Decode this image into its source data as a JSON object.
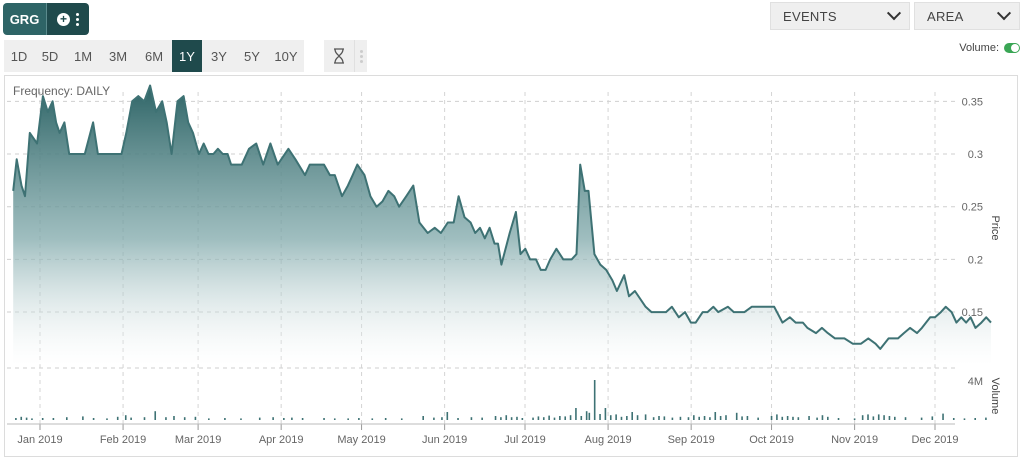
{
  "ticker": {
    "symbol": "GRG"
  },
  "dropdowns": {
    "events_label": "EVENTS",
    "chart_type_label": "AREA"
  },
  "ranges": [
    "1D",
    "5D",
    "1M",
    "3M",
    "6M",
    "1Y",
    "3Y",
    "5Y",
    "10Y"
  ],
  "active_range": "1Y",
  "volume_toggle": {
    "label": "Volume:",
    "on": true,
    "color": "#3aa655"
  },
  "frequency_text": "Frequency: DAILY",
  "colors": {
    "accent": "#1f4a4c",
    "line": "#3e7274",
    "fill_top": "#2e6466",
    "volume_bar": "#3e7274"
  },
  "chart_data": {
    "type": "area",
    "title": "",
    "ylabel": "Price",
    "y2label": "Volume",
    "ylim": [
      0.095,
      0.375
    ],
    "yticks": [
      0.15,
      0.2,
      0.25,
      0.3,
      0.35
    ],
    "ytick_labels": [
      "0.15",
      "0.2",
      "0.25",
      "0.3",
      "0.35"
    ],
    "volume_ticks": [
      4000000
    ],
    "volume_tick_labels": [
      "4M"
    ],
    "x_labels": [
      {
        "t": 2.0,
        "label": "Jan 2019"
      },
      {
        "t": 33.0,
        "label": "Feb 2019"
      },
      {
        "t": 61.0,
        "label": "Mar 2019"
      },
      {
        "t": 92.0,
        "label": "Apr 2019"
      },
      {
        "t": 122.0,
        "label": "May 2019"
      },
      {
        "t": 153.0,
        "label": "Jun 2019"
      },
      {
        "t": 183.0,
        "label": "Jul 2019"
      },
      {
        "t": 214.0,
        "label": "Aug 2019"
      },
      {
        "t": 245.0,
        "label": "Sep 2019"
      },
      {
        "t": 275.0,
        "label": "Oct 2019"
      },
      {
        "t": 306.0,
        "label": "Nov 2019"
      },
      {
        "t": 336.0,
        "label": "Dec 2019"
      }
    ],
    "grid": true,
    "series": [
      {
        "values": [
          [
            -8,
            0.265
          ],
          [
            -6.7,
            0.295
          ],
          [
            -4.9,
            0.27
          ],
          [
            -3.6,
            0.26
          ],
          [
            -1.8,
            0.32
          ],
          [
            0.9,
            0.31
          ],
          [
            3.1,
            0.355
          ],
          [
            4.9,
            0.34
          ],
          [
            6.7,
            0.35
          ],
          [
            8.0,
            0.33
          ],
          [
            9.3,
            0.32
          ],
          [
            11.1,
            0.33
          ],
          [
            12.9,
            0.3
          ],
          [
            15.1,
            0.3
          ],
          [
            17.3,
            0.3
          ],
          [
            18.7,
            0.3
          ],
          [
            21.8,
            0.33
          ],
          [
            23.6,
            0.3
          ],
          [
            26.2,
            0.3
          ],
          [
            28.0,
            0.3
          ],
          [
            30.7,
            0.3
          ],
          [
            32.4,
            0.3
          ],
          [
            34.2,
            0.32
          ],
          [
            36.4,
            0.35
          ],
          [
            38.7,
            0.355
          ],
          [
            40.9,
            0.35
          ],
          [
            43.1,
            0.365
          ],
          [
            45.3,
            0.34
          ],
          [
            47.6,
            0.35
          ],
          [
            49.3,
            0.33
          ],
          [
            51.1,
            0.3
          ],
          [
            53.3,
            0.35
          ],
          [
            55.6,
            0.355
          ],
          [
            57.3,
            0.33
          ],
          [
            59.1,
            0.32
          ],
          [
            61.3,
            0.3
          ],
          [
            63.1,
            0.31
          ],
          [
            64.9,
            0.3
          ],
          [
            66.7,
            0.3
          ],
          [
            68.4,
            0.305
          ],
          [
            70.2,
            0.3
          ],
          [
            72.0,
            0.3
          ],
          [
            73.3,
            0.29
          ],
          [
            77.3,
            0.29
          ],
          [
            80.0,
            0.305
          ],
          [
            82.7,
            0.31
          ],
          [
            85.3,
            0.29
          ],
          [
            88.0,
            0.31
          ],
          [
            90.7,
            0.29
          ],
          [
            94.7,
            0.305
          ],
          [
            97.3,
            0.295
          ],
          [
            100.9,
            0.28
          ],
          [
            102.7,
            0.29
          ],
          [
            108.0,
            0.29
          ],
          [
            110.2,
            0.28
          ],
          [
            112.0,
            0.28
          ],
          [
            114.7,
            0.26
          ],
          [
            116.9,
            0.27
          ],
          [
            118.7,
            0.28
          ],
          [
            120.4,
            0.29
          ],
          [
            123.1,
            0.28
          ],
          [
            125.3,
            0.26
          ],
          [
            127.6,
            0.25
          ],
          [
            129.8,
            0.255
          ],
          [
            132.0,
            0.265
          ],
          [
            134.2,
            0.26
          ],
          [
            136.0,
            0.25
          ],
          [
            138.7,
            0.26
          ],
          [
            141.3,
            0.27
          ],
          [
            143.6,
            0.235
          ],
          [
            146.7,
            0.225
          ],
          [
            149.3,
            0.23
          ],
          [
            151.6,
            0.225
          ],
          [
            154.2,
            0.235
          ],
          [
            156.4,
            0.235
          ],
          [
            158.2,
            0.26
          ],
          [
            160.4,
            0.24
          ],
          [
            162.7,
            0.235
          ],
          [
            164.4,
            0.225
          ],
          [
            166.2,
            0.23
          ],
          [
            168.0,
            0.22
          ],
          [
            169.8,
            0.23
          ],
          [
            171.6,
            0.215
          ],
          [
            172.9,
            0.215
          ],
          [
            174.2,
            0.195
          ],
          [
            177.3,
            0.225
          ],
          [
            179.6,
            0.245
          ],
          [
            181.3,
            0.205
          ],
          [
            183.1,
            0.21
          ],
          [
            184.9,
            0.2
          ],
          [
            187.1,
            0.2
          ],
          [
            188.9,
            0.19
          ],
          [
            190.7,
            0.19
          ],
          [
            192.4,
            0.2
          ],
          [
            194.7,
            0.21
          ],
          [
            197.3,
            0.2
          ],
          [
            200.4,
            0.2
          ],
          [
            202.2,
            0.205
          ],
          [
            203.6,
            0.29
          ],
          [
            205.3,
            0.265
          ],
          [
            206.7,
            0.265
          ],
          [
            208.9,
            0.205
          ],
          [
            211.1,
            0.195
          ],
          [
            213.3,
            0.19
          ],
          [
            215.6,
            0.18
          ],
          [
            217.3,
            0.17
          ],
          [
            220.0,
            0.185
          ],
          [
            221.8,
            0.165
          ],
          [
            224.0,
            0.17
          ],
          [
            228.0,
            0.155
          ],
          [
            230.2,
            0.15
          ],
          [
            232.9,
            0.15
          ],
          [
            235.6,
            0.15
          ],
          [
            237.8,
            0.155
          ],
          [
            240.4,
            0.145
          ],
          [
            242.7,
            0.15
          ],
          [
            244.9,
            0.14
          ],
          [
            246.7,
            0.14
          ],
          [
            249.3,
            0.15
          ],
          [
            251.1,
            0.15
          ],
          [
            253.3,
            0.155
          ],
          [
            255.1,
            0.15
          ],
          [
            258.7,
            0.155
          ],
          [
            260.9,
            0.15
          ],
          [
            264.9,
            0.15
          ],
          [
            267.6,
            0.155
          ],
          [
            270.7,
            0.155
          ],
          [
            273.3,
            0.155
          ],
          [
            276.0,
            0.155
          ],
          [
            279.1,
            0.14
          ],
          [
            281.8,
            0.145
          ],
          [
            284.0,
            0.14
          ],
          [
            286.7,
            0.14
          ],
          [
            288.4,
            0.135
          ],
          [
            291.6,
            0.13
          ],
          [
            293.8,
            0.135
          ],
          [
            296.0,
            0.13
          ],
          [
            298.7,
            0.125
          ],
          [
            302.2,
            0.125
          ],
          [
            305.3,
            0.12
          ],
          [
            308.4,
            0.12
          ],
          [
            311.1,
            0.125
          ],
          [
            313.8,
            0.12
          ],
          [
            315.6,
            0.115
          ],
          [
            318.7,
            0.125
          ],
          [
            322.2,
            0.125
          ],
          [
            324.4,
            0.13
          ],
          [
            326.7,
            0.135
          ],
          [
            329.3,
            0.13
          ],
          [
            331.1,
            0.135
          ],
          [
            334.2,
            0.145
          ],
          [
            336.0,
            0.145
          ],
          [
            338.2,
            0.15
          ],
          [
            340.0,
            0.155
          ],
          [
            342.2,
            0.15
          ],
          [
            344.0,
            0.14
          ],
          [
            345.8,
            0.145
          ],
          [
            347.6,
            0.14
          ],
          [
            349.3,
            0.145
          ],
          [
            351.1,
            0.135
          ],
          [
            353.3,
            0.14
          ],
          [
            355.1,
            0.145
          ],
          [
            356.9,
            0.14
          ]
        ]
      }
    ],
    "volume": [
      [
        -7,
        0.05
      ],
      [
        -5,
        0.08
      ],
      [
        -3,
        0.06
      ],
      [
        -1,
        0.04
      ],
      [
        3,
        0.05
      ],
      [
        7,
        0.05
      ],
      [
        12,
        0.07
      ],
      [
        18,
        0.09
      ],
      [
        22,
        0.05
      ],
      [
        27,
        0.04
      ],
      [
        31,
        0.08
      ],
      [
        34,
        0.12
      ],
      [
        36,
        0.06
      ],
      [
        41,
        0.07
      ],
      [
        45,
        0.22
      ],
      [
        49,
        0.07
      ],
      [
        52,
        0.1
      ],
      [
        56,
        0.07
      ],
      [
        60,
        0.08
      ],
      [
        65,
        0.04
      ],
      [
        71,
        0.05
      ],
      [
        77,
        0.04
      ],
      [
        84,
        0.06
      ],
      [
        89,
        0.07
      ],
      [
        93,
        0.05
      ],
      [
        96,
        0.06
      ],
      [
        100,
        0.05
      ],
      [
        108,
        0.05
      ],
      [
        112,
        0.04
      ],
      [
        117,
        0.04
      ],
      [
        121,
        0.05
      ],
      [
        126,
        0.04
      ],
      [
        131,
        0.05
      ],
      [
        137,
        0.04
      ],
      [
        145,
        0.1
      ],
      [
        149,
        0.06
      ],
      [
        152,
        0.07
      ],
      [
        154,
        0.2
      ],
      [
        158,
        0.05
      ],
      [
        163,
        0.07
      ],
      [
        167,
        0.06
      ],
      [
        172,
        0.1
      ],
      [
        174,
        0.07
      ],
      [
        176,
        0.12
      ],
      [
        178,
        0.07
      ],
      [
        180,
        0.08
      ],
      [
        182,
        0.05
      ],
      [
        186,
        0.06
      ],
      [
        188,
        0.09
      ],
      [
        190,
        0.07
      ],
      [
        192,
        0.11
      ],
      [
        194,
        0.06
      ],
      [
        196,
        0.1
      ],
      [
        198,
        0.09
      ],
      [
        200,
        0.12
      ],
      [
        202,
        0.3
      ],
      [
        204,
        0.1
      ],
      [
        206,
        0.22
      ],
      [
        207,
        0.18
      ],
      [
        209,
        1.0
      ],
      [
        211,
        0.15
      ],
      [
        213,
        0.3
      ],
      [
        215,
        0.12
      ],
      [
        217,
        0.14
      ],
      [
        219,
        0.08
      ],
      [
        221,
        0.1
      ],
      [
        223,
        0.2
      ],
      [
        225,
        0.12
      ],
      [
        228,
        0.14
      ],
      [
        231,
        0.07
      ],
      [
        233,
        0.1
      ],
      [
        235,
        0.09
      ],
      [
        238,
        0.06
      ],
      [
        241,
        0.08
      ],
      [
        244,
        0.07
      ],
      [
        246,
        0.12
      ],
      [
        248,
        0.08
      ],
      [
        250,
        0.1
      ],
      [
        252,
        0.07
      ],
      [
        254,
        0.2
      ],
      [
        256,
        0.1
      ],
      [
        258,
        0.12
      ],
      [
        262,
        0.18
      ],
      [
        264,
        0.09
      ],
      [
        266,
        0.1
      ],
      [
        270,
        0.06
      ],
      [
        275,
        0.1
      ],
      [
        277,
        0.14
      ],
      [
        279,
        0.08
      ],
      [
        281,
        0.1
      ],
      [
        283,
        0.08
      ],
      [
        285,
        0.07
      ],
      [
        289,
        0.1
      ],
      [
        292,
        0.06
      ],
      [
        294,
        0.12
      ],
      [
        296,
        0.08
      ],
      [
        300,
        0.05
      ],
      [
        306,
        0.04
      ],
      [
        309,
        0.12
      ],
      [
        311,
        0.14
      ],
      [
        313,
        0.09
      ],
      [
        315,
        0.14
      ],
      [
        317,
        0.12
      ],
      [
        319,
        0.1
      ],
      [
        321,
        0.08
      ],
      [
        325,
        0.07
      ],
      [
        331,
        0.06
      ],
      [
        335,
        0.09
      ],
      [
        339,
        0.16
      ],
      [
        343,
        0.05
      ],
      [
        347,
        0.04
      ],
      [
        351,
        0.05
      ],
      [
        355,
        0.06
      ]
    ]
  }
}
